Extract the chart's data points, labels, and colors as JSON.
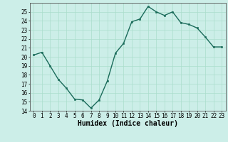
{
  "x": [
    0,
    1,
    2,
    3,
    4,
    5,
    6,
    7,
    8,
    9,
    10,
    11,
    12,
    13,
    14,
    15,
    16,
    17,
    18,
    19,
    20,
    21,
    22,
    23
  ],
  "y": [
    20.2,
    20.5,
    19.0,
    17.5,
    16.5,
    15.3,
    15.2,
    14.3,
    15.2,
    17.3,
    20.4,
    21.5,
    23.9,
    24.2,
    25.6,
    25.0,
    24.6,
    25.0,
    23.8,
    23.6,
    23.2,
    22.2,
    21.1,
    21.1
  ],
  "xlabel": "Humidex (Indice chaleur)",
  "ylim": [
    14,
    26
  ],
  "xlim": [
    -0.5,
    23.5
  ],
  "yticks": [
    14,
    15,
    16,
    17,
    18,
    19,
    20,
    21,
    22,
    23,
    24,
    25
  ],
  "xticks": [
    0,
    1,
    2,
    3,
    4,
    5,
    6,
    7,
    8,
    9,
    10,
    11,
    12,
    13,
    14,
    15,
    16,
    17,
    18,
    19,
    20,
    21,
    22,
    23
  ],
  "line_color": "#1a6b5a",
  "marker_color": "#1a6b5a",
  "bg_color": "#cceee8",
  "grid_color": "#aaddcc",
  "tick_label_fontsize": 5.5,
  "xlabel_fontsize": 7.0,
  "marker_size": 2.0,
  "line_width": 1.0
}
